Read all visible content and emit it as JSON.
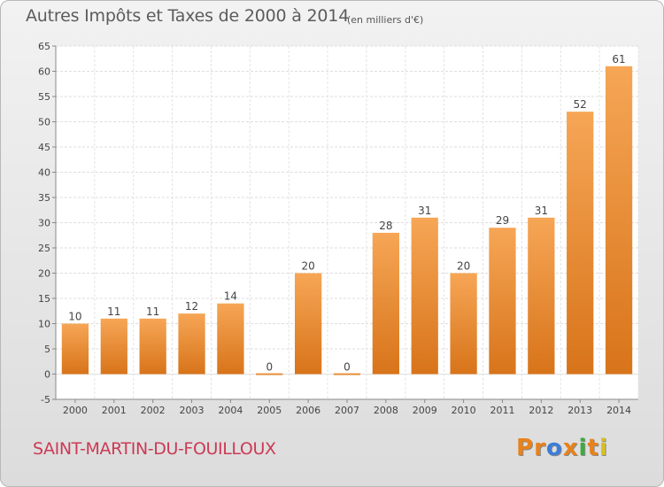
{
  "chart_data": {
    "type": "bar",
    "title": "Autres Impôts et Taxes de 2000 à 2014",
    "subtitle": "(en milliers d'€)",
    "categories": [
      "2000",
      "2001",
      "2002",
      "2003",
      "2004",
      "2005",
      "2006",
      "2007",
      "2008",
      "2009",
      "2010",
      "2011",
      "2012",
      "2013",
      "2014"
    ],
    "values": [
      10,
      11,
      11,
      12,
      14,
      0,
      20,
      0,
      28,
      31,
      20,
      29,
      31,
      52,
      61
    ],
    "data_labels": [
      "10",
      "11",
      "11",
      "12",
      "14",
      "0",
      "20",
      "0",
      "28",
      "31",
      "20",
      "29",
      "31",
      "52",
      "61"
    ],
    "y_ticks": [
      "-5",
      "0",
      "5",
      "10",
      "15",
      "20",
      "25",
      "30",
      "35",
      "40",
      "45",
      "50",
      "55",
      "60",
      "65"
    ],
    "ylim": [
      -5,
      65
    ],
    "grid": true,
    "bar_color": "#f0922e"
  },
  "footer": {
    "town": "SAINT-MARTIN-DU-FOUILLOUX",
    "logo": [
      "P",
      "r",
      "o",
      "x",
      "i",
      "t",
      "i"
    ],
    "logo_colors": [
      "#e8821a",
      "#e8821a",
      "#3c7dd8",
      "#e8821a",
      "#3cac3c",
      "#e8821a",
      "#d8c020"
    ]
  }
}
